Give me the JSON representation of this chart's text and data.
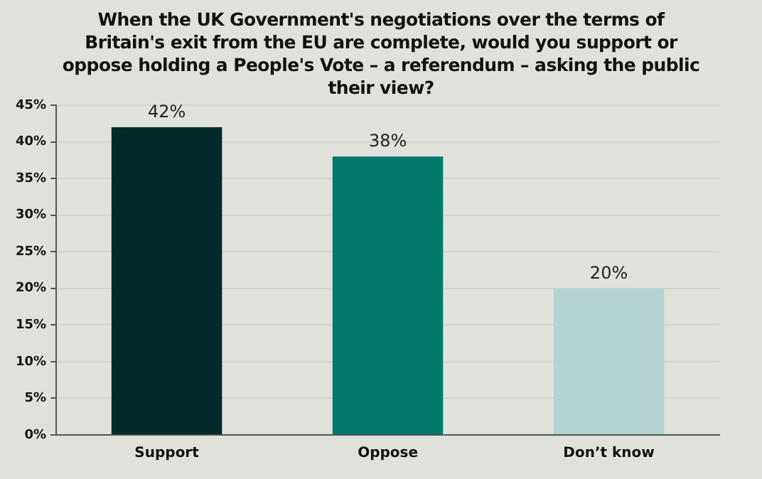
{
  "chart_data": {
    "type": "bar",
    "title": "When the UK Government's negotiations over the terms of Britain's exit from the EU are complete, would you support or oppose holding a People's Vote – a referendum – asking the public their view?",
    "categories": [
      "Support",
      "Oppose",
      "Don’t know"
    ],
    "values": [
      42,
      38,
      20
    ],
    "colors": [
      "#022a2a",
      "#00796c",
      "#b3d4d0"
    ],
    "value_labels": [
      "42%",
      "38%",
      "20%"
    ],
    "ylim": [
      0,
      45
    ],
    "yticks": [
      {
        "value": 0,
        "label": "0%"
      },
      {
        "value": 5,
        "label": "5%"
      },
      {
        "value": 10,
        "label": "10%"
      },
      {
        "value": 15,
        "label": "15%"
      },
      {
        "value": 20,
        "label": "20%"
      },
      {
        "value": 25,
        "label": "25%"
      },
      {
        "value": 30,
        "label": "30%"
      },
      {
        "value": 35,
        "label": "35%"
      },
      {
        "value": 40,
        "label": "40%"
      },
      {
        "value": 45,
        "label": "45%"
      }
    ],
    "grid": "y",
    "legend": false
  }
}
